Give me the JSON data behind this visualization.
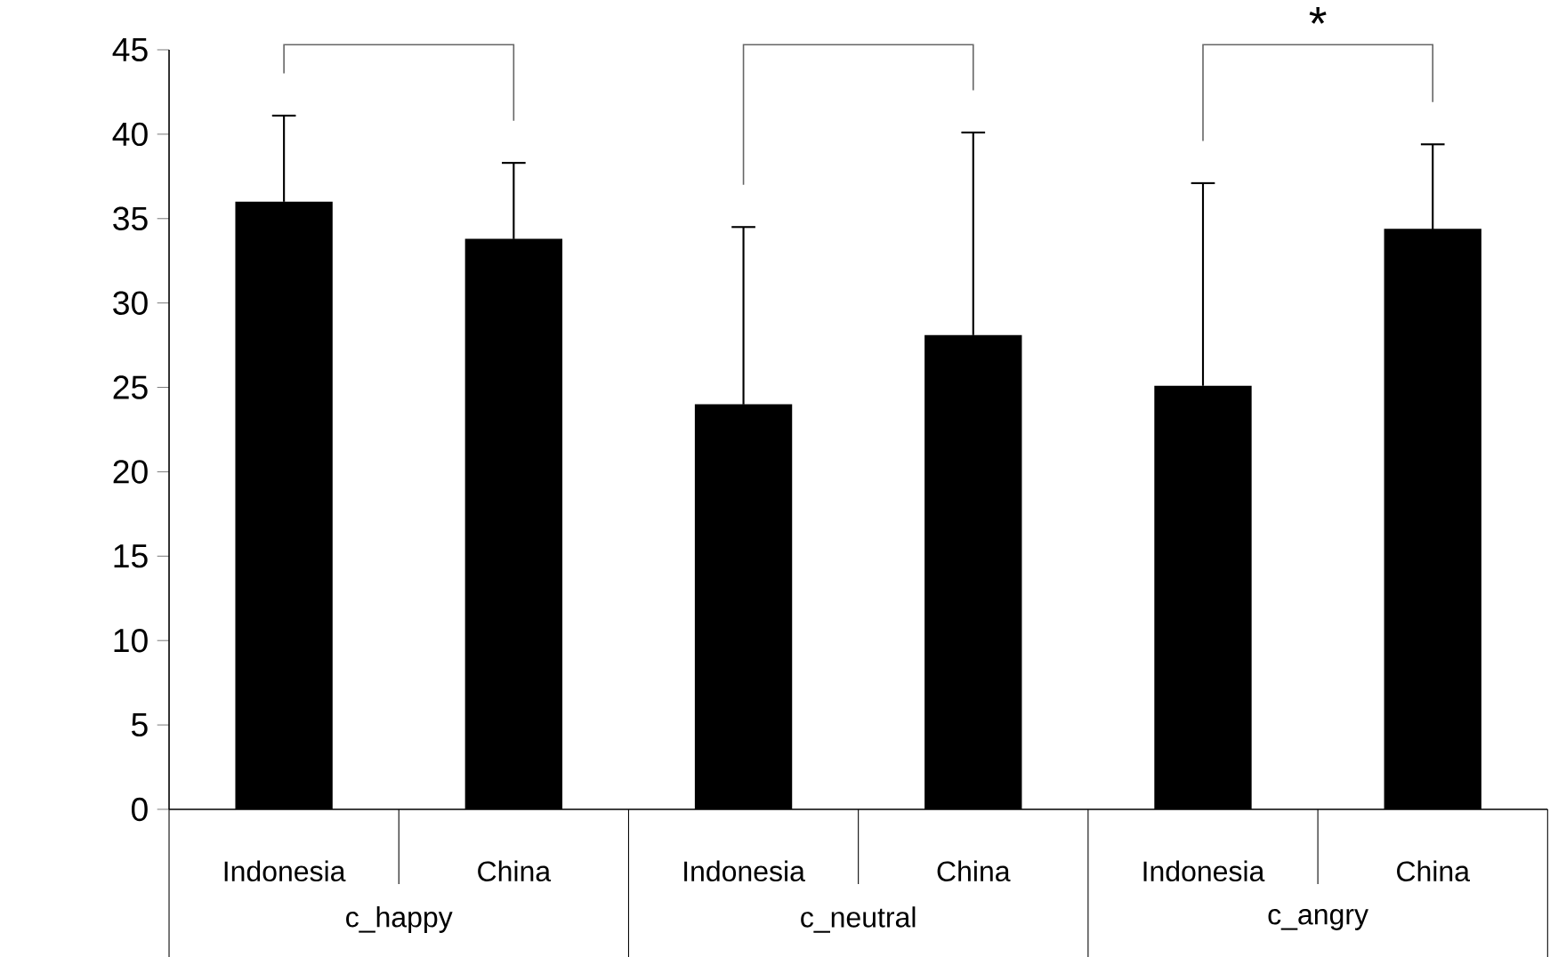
{
  "chart_data": {
    "type": "bar",
    "categories": [
      "Indonesia",
      "China",
      "Indonesia",
      "China",
      "Indonesia",
      "China"
    ],
    "values": [
      36.0,
      33.8,
      24.0,
      28.1,
      25.1,
      34.4
    ],
    "errors": [
      5.1,
      4.5,
      10.5,
      12.0,
      12.0,
      5.0
    ],
    "color": "#000000",
    "ylim": [
      0,
      45
    ],
    "yticks": [
      0,
      5,
      10,
      15,
      20,
      25,
      30,
      35,
      40,
      45
    ],
    "annotations": [
      "*",
      "c_happy",
      "c_neutral",
      "c_angry"
    ]
  }
}
